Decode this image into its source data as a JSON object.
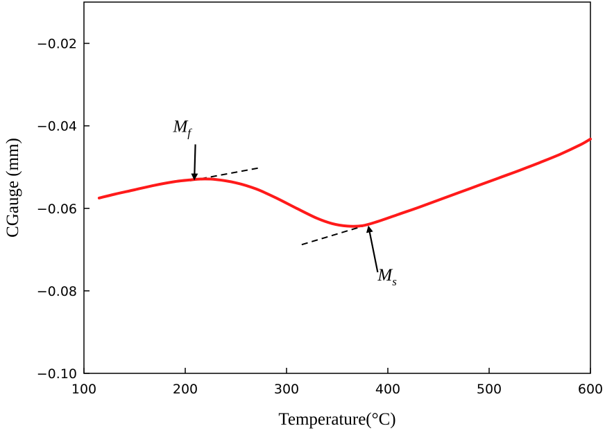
{
  "chart_data": {
    "type": "line",
    "xlabel": "Temperature(°C)",
    "ylabel": "CGauge (mm)",
    "xlim": [
      100,
      600
    ],
    "ylim": [
      -0.1,
      -0.01
    ],
    "x_ticks": [
      100,
      200,
      300,
      400,
      500,
      600
    ],
    "x_tick_labels": [
      "100",
      "200",
      "300",
      "400",
      "500",
      "600"
    ],
    "y_ticks": [
      -0.1,
      -0.08,
      -0.06,
      -0.04,
      -0.02
    ],
    "y_tick_labels": [
      "−0.10",
      "−0.08",
      "−0.06",
      "−0.04",
      "−0.02"
    ],
    "grid": false,
    "line_color": "#ff1a1a",
    "series": [
      {
        "x": [
          115,
          130,
          150,
          170,
          190,
          205,
          215,
          230,
          250,
          270,
          290,
          310,
          330,
          345,
          360,
          375,
          390,
          410,
          430,
          450,
          470,
          490,
          510,
          530,
          550,
          570,
          590,
          600
        ],
        "y": [
          -0.0575,
          -0.0566,
          -0.0555,
          -0.0544,
          -0.0535,
          -0.0531,
          -0.0529,
          -0.053,
          -0.0538,
          -0.0553,
          -0.0575,
          -0.06,
          -0.0624,
          -0.0637,
          -0.0643,
          -0.0642,
          -0.0632,
          -0.0615,
          -0.0598,
          -0.058,
          -0.0562,
          -0.0544,
          -0.0526,
          -0.0508,
          -0.0489,
          -0.0469,
          -0.0446,
          -0.0432
        ]
      }
    ],
    "tangent_lines": [
      {
        "x": [
          205,
          275
        ],
        "y": [
          -0.0533,
          -0.0501
        ]
      },
      {
        "x": [
          315,
          400
        ],
        "y": [
          -0.0688,
          -0.0625
        ]
      }
    ],
    "annotations": [
      {
        "label": "M",
        "subscript": "f",
        "text_at": [
          188,
          -0.0415
        ],
        "arrow_from": [
          210,
          -0.0445
        ],
        "arrow_to": [
          209,
          -0.0529
        ]
      },
      {
        "label": "M",
        "subscript": "s",
        "text_at": [
          390,
          -0.0775
        ],
        "arrow_from": [
          390,
          -0.0755
        ],
        "arrow_to": [
          381,
          -0.0645
        ]
      }
    ]
  }
}
